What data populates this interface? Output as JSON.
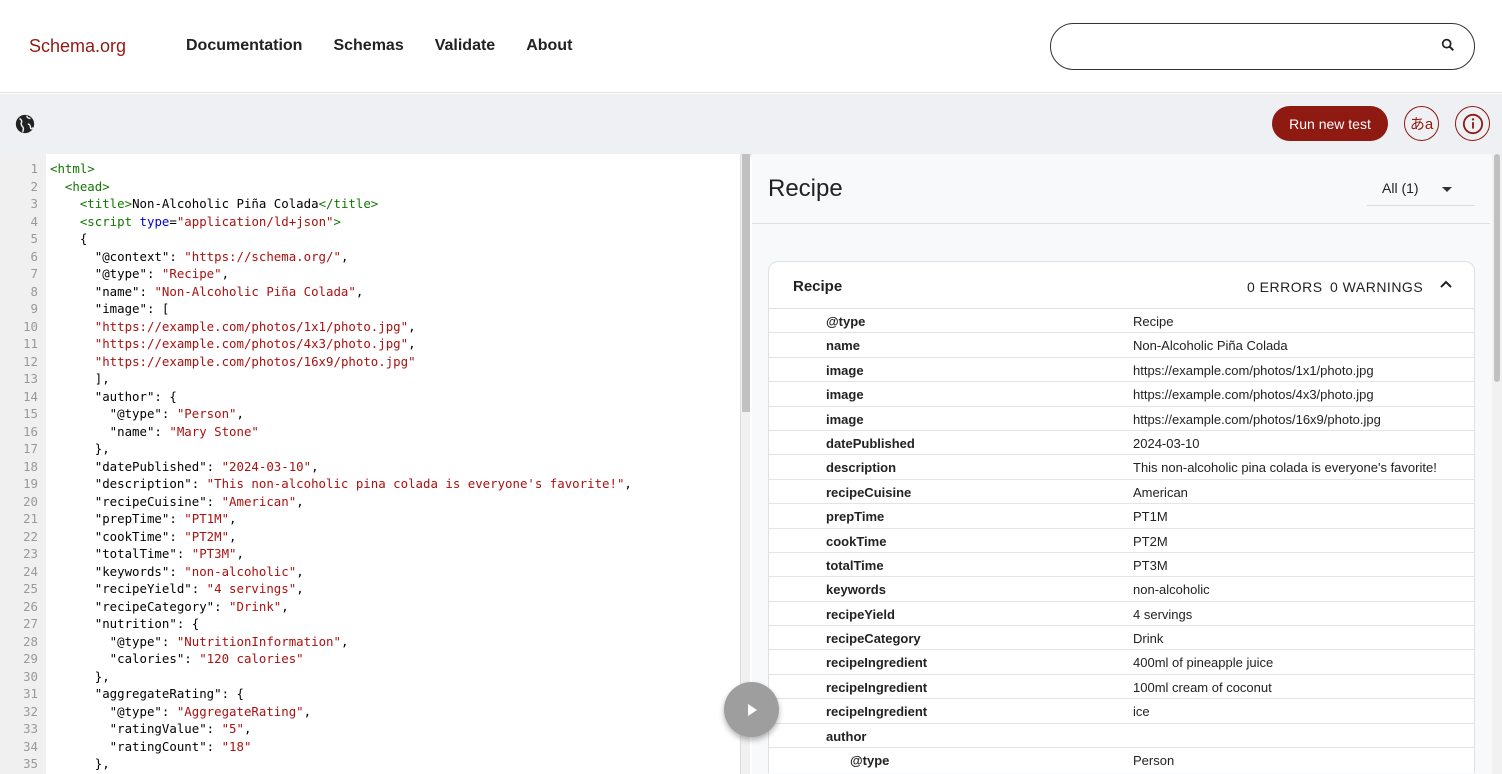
{
  "header": {
    "logo": "Schema.org",
    "nav": [
      "Documentation",
      "Schemas",
      "Validate",
      "About"
    ],
    "search_value": ""
  },
  "toolbar": {
    "run_label": "Run new test",
    "lang_label": "あa",
    "info_label": "i"
  },
  "editor": {
    "lines": [
      [
        [
          "t",
          "<html>"
        ]
      ],
      [
        [
          "p",
          "  "
        ],
        [
          "t",
          "<head>"
        ]
      ],
      [
        [
          "p",
          "    "
        ],
        [
          "t",
          "<title>"
        ],
        [
          "p",
          "Non-Alcoholic Piña Colada"
        ],
        [
          "t",
          "</title>"
        ]
      ],
      [
        [
          "p",
          "    "
        ],
        [
          "t",
          "<script "
        ],
        [
          "a",
          "type"
        ],
        [
          "p",
          "="
        ],
        [
          "s",
          "\"application/ld+json\""
        ],
        [
          "t",
          ">"
        ]
      ],
      [
        [
          "p",
          "    {"
        ]
      ],
      [
        [
          "p",
          "      \"@context\": "
        ],
        [
          "s",
          "\"https://schema.org/\""
        ],
        [
          "p",
          ","
        ]
      ],
      [
        [
          "p",
          "      \"@type\": "
        ],
        [
          "s",
          "\"Recipe\""
        ],
        [
          "p",
          ","
        ]
      ],
      [
        [
          "p",
          "      \"name\": "
        ],
        [
          "s",
          "\"Non-Alcoholic Piña Colada\""
        ],
        [
          "p",
          ","
        ]
      ],
      [
        [
          "p",
          "      \"image\": ["
        ]
      ],
      [
        [
          "p",
          "      "
        ],
        [
          "s",
          "\"https://example.com/photos/1x1/photo.jpg\""
        ],
        [
          "p",
          ","
        ]
      ],
      [
        [
          "p",
          "      "
        ],
        [
          "s",
          "\"https://example.com/photos/4x3/photo.jpg\""
        ],
        [
          "p",
          ","
        ]
      ],
      [
        [
          "p",
          "      "
        ],
        [
          "s",
          "\"https://example.com/photos/16x9/photo.jpg\""
        ]
      ],
      [
        [
          "p",
          "      ],"
        ]
      ],
      [
        [
          "p",
          "      \"author\": {"
        ]
      ],
      [
        [
          "p",
          "        \"@type\": "
        ],
        [
          "s",
          "\"Person\""
        ],
        [
          "p",
          ","
        ]
      ],
      [
        [
          "p",
          "        \"name\": "
        ],
        [
          "s",
          "\"Mary Stone\""
        ]
      ],
      [
        [
          "p",
          "      },"
        ]
      ],
      [
        [
          "p",
          "      \"datePublished\": "
        ],
        [
          "s",
          "\"2024-03-10\""
        ],
        [
          "p",
          ","
        ]
      ],
      [
        [
          "p",
          "      \"description\": "
        ],
        [
          "s",
          "\"This non-alcoholic pina colada is everyone's favorite!\""
        ],
        [
          "p",
          ","
        ]
      ],
      [
        [
          "p",
          "      \"recipeCuisine\": "
        ],
        [
          "s",
          "\"American\""
        ],
        [
          "p",
          ","
        ]
      ],
      [
        [
          "p",
          "      \"prepTime\": "
        ],
        [
          "s",
          "\"PT1M\""
        ],
        [
          "p",
          ","
        ]
      ],
      [
        [
          "p",
          "      \"cookTime\": "
        ],
        [
          "s",
          "\"PT2M\""
        ],
        [
          "p",
          ","
        ]
      ],
      [
        [
          "p",
          "      \"totalTime\": "
        ],
        [
          "s",
          "\"PT3M\""
        ],
        [
          "p",
          ","
        ]
      ],
      [
        [
          "p",
          "      \"keywords\": "
        ],
        [
          "s",
          "\"non-alcoholic\""
        ],
        [
          "p",
          ","
        ]
      ],
      [
        [
          "p",
          "      \"recipeYield\": "
        ],
        [
          "s",
          "\"4 servings\""
        ],
        [
          "p",
          ","
        ]
      ],
      [
        [
          "p",
          "      \"recipeCategory\": "
        ],
        [
          "s",
          "\"Drink\""
        ],
        [
          "p",
          ","
        ]
      ],
      [
        [
          "p",
          "      \"nutrition\": {"
        ]
      ],
      [
        [
          "p",
          "        \"@type\": "
        ],
        [
          "s",
          "\"NutritionInformation\""
        ],
        [
          "p",
          ","
        ]
      ],
      [
        [
          "p",
          "        \"calories\": "
        ],
        [
          "s",
          "\"120 calories\""
        ]
      ],
      [
        [
          "p",
          "      },"
        ]
      ],
      [
        [
          "p",
          "      \"aggregateRating\": {"
        ]
      ],
      [
        [
          "p",
          "        \"@type\": "
        ],
        [
          "s",
          "\"AggregateRating\""
        ],
        [
          "p",
          ","
        ]
      ],
      [
        [
          "p",
          "        \"ratingValue\": "
        ],
        [
          "s",
          "\"5\""
        ],
        [
          "p",
          ","
        ]
      ],
      [
        [
          "p",
          "        \"ratingCount\": "
        ],
        [
          "s",
          "\"18\""
        ]
      ],
      [
        [
          "p",
          "      },"
        ]
      ]
    ]
  },
  "results": {
    "title": "Recipe",
    "filter": "All (1)",
    "card": {
      "title": "Recipe",
      "errors": "0 ERRORS",
      "warnings": "0 WARNINGS",
      "rows": [
        {
          "k": "@type",
          "v": "Recipe"
        },
        {
          "k": "name",
          "v": "Non-Alcoholic Piña Colada"
        },
        {
          "k": "image",
          "v": "https://example.com/photos/1x1/photo.jpg"
        },
        {
          "k": "image",
          "v": "https://example.com/photos/4x3/photo.jpg"
        },
        {
          "k": "image",
          "v": "https://example.com/photos/16x9/photo.jpg"
        },
        {
          "k": "datePublished",
          "v": "2024-03-10"
        },
        {
          "k": "description",
          "v": "This non-alcoholic pina colada is everyone's favorite!"
        },
        {
          "k": "recipeCuisine",
          "v": "American"
        },
        {
          "k": "prepTime",
          "v": "PT1M"
        },
        {
          "k": "cookTime",
          "v": "PT2M"
        },
        {
          "k": "totalTime",
          "v": "PT3M"
        },
        {
          "k": "keywords",
          "v": "non-alcoholic"
        },
        {
          "k": "recipeYield",
          "v": "4 servings"
        },
        {
          "k": "recipeCategory",
          "v": "Drink"
        },
        {
          "k": "recipeIngredient",
          "v": "400ml of pineapple juice"
        },
        {
          "k": "recipeIngredient",
          "v": "100ml cream of coconut"
        },
        {
          "k": "recipeIngredient",
          "v": "ice"
        },
        {
          "k": "author",
          "v": ""
        },
        {
          "k": "@type",
          "v": "Person",
          "nested": true
        }
      ]
    }
  }
}
